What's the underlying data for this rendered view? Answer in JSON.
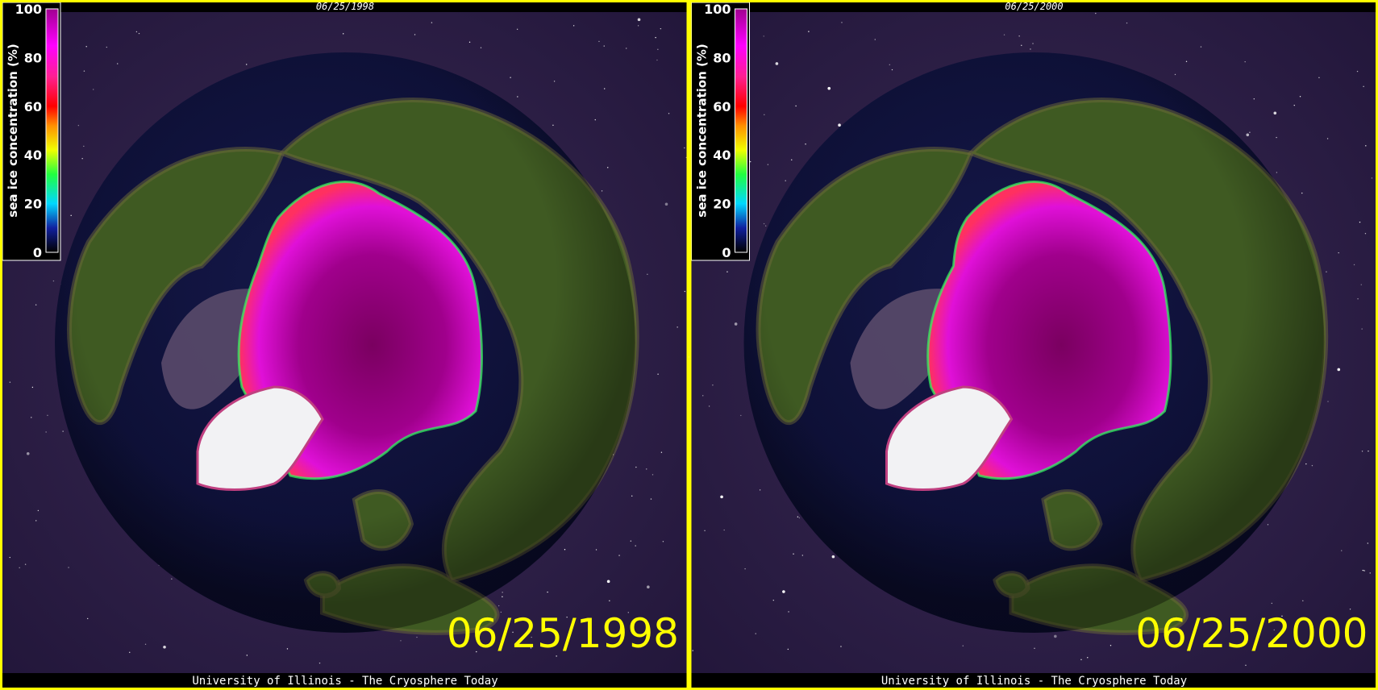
{
  "panels": [
    {
      "top_date": "06/25/1998",
      "large_date": "06/25/1998",
      "footer": "University of Illinois - The Cryosphere Today",
      "colorbar": {
        "label": "sea ice concentration (%)",
        "ticks": [
          0,
          20,
          40,
          60,
          80,
          100
        ]
      }
    },
    {
      "top_date": "06/25/2000",
      "large_date": "06/25/2000",
      "footer": "University of Illinois - The Cryosphere Today",
      "colorbar": {
        "label": "sea ice concentration (%)",
        "ticks": [
          0,
          20,
          40,
          60,
          80,
          100
        ]
      }
    }
  ]
}
